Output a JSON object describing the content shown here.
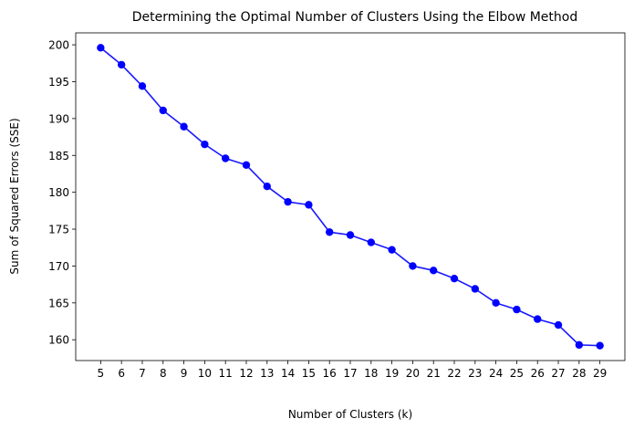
{
  "chart_data": {
    "type": "line",
    "title": "Determining the Optimal Number of Clusters Using the Elbow Method",
    "xlabel": "Number of Clusters (k)",
    "ylabel": "Sum of Squared Errors (SSE)",
    "x": [
      5,
      6,
      7,
      8,
      9,
      10,
      11,
      12,
      13,
      14,
      15,
      16,
      17,
      18,
      19,
      20,
      21,
      22,
      23,
      24,
      25,
      26,
      27,
      28,
      29
    ],
    "values": [
      199.6,
      197.3,
      194.4,
      191.1,
      188.9,
      186.5,
      184.6,
      183.7,
      180.8,
      178.7,
      178.3,
      174.6,
      174.2,
      173.2,
      172.2,
      170.0,
      169.4,
      168.3,
      166.9,
      165.0,
      164.1,
      162.8,
      162.0,
      159.3,
      159.2
    ],
    "xticks": [
      "5",
      "6",
      "7",
      "8",
      "9",
      "10",
      "11",
      "12",
      "13",
      "14",
      "15",
      "16",
      "17",
      "18",
      "19",
      "20",
      "21",
      "22",
      "23",
      "24",
      "25",
      "26",
      "27",
      "28",
      "29"
    ],
    "yticks": [
      160,
      165,
      170,
      175,
      180,
      185,
      190,
      195,
      200
    ],
    "xlim": [
      3.8,
      30.2
    ],
    "ylim": [
      157.18,
      201.62
    ],
    "grid": false,
    "line_color": "#0000ff",
    "marker": "circle"
  }
}
